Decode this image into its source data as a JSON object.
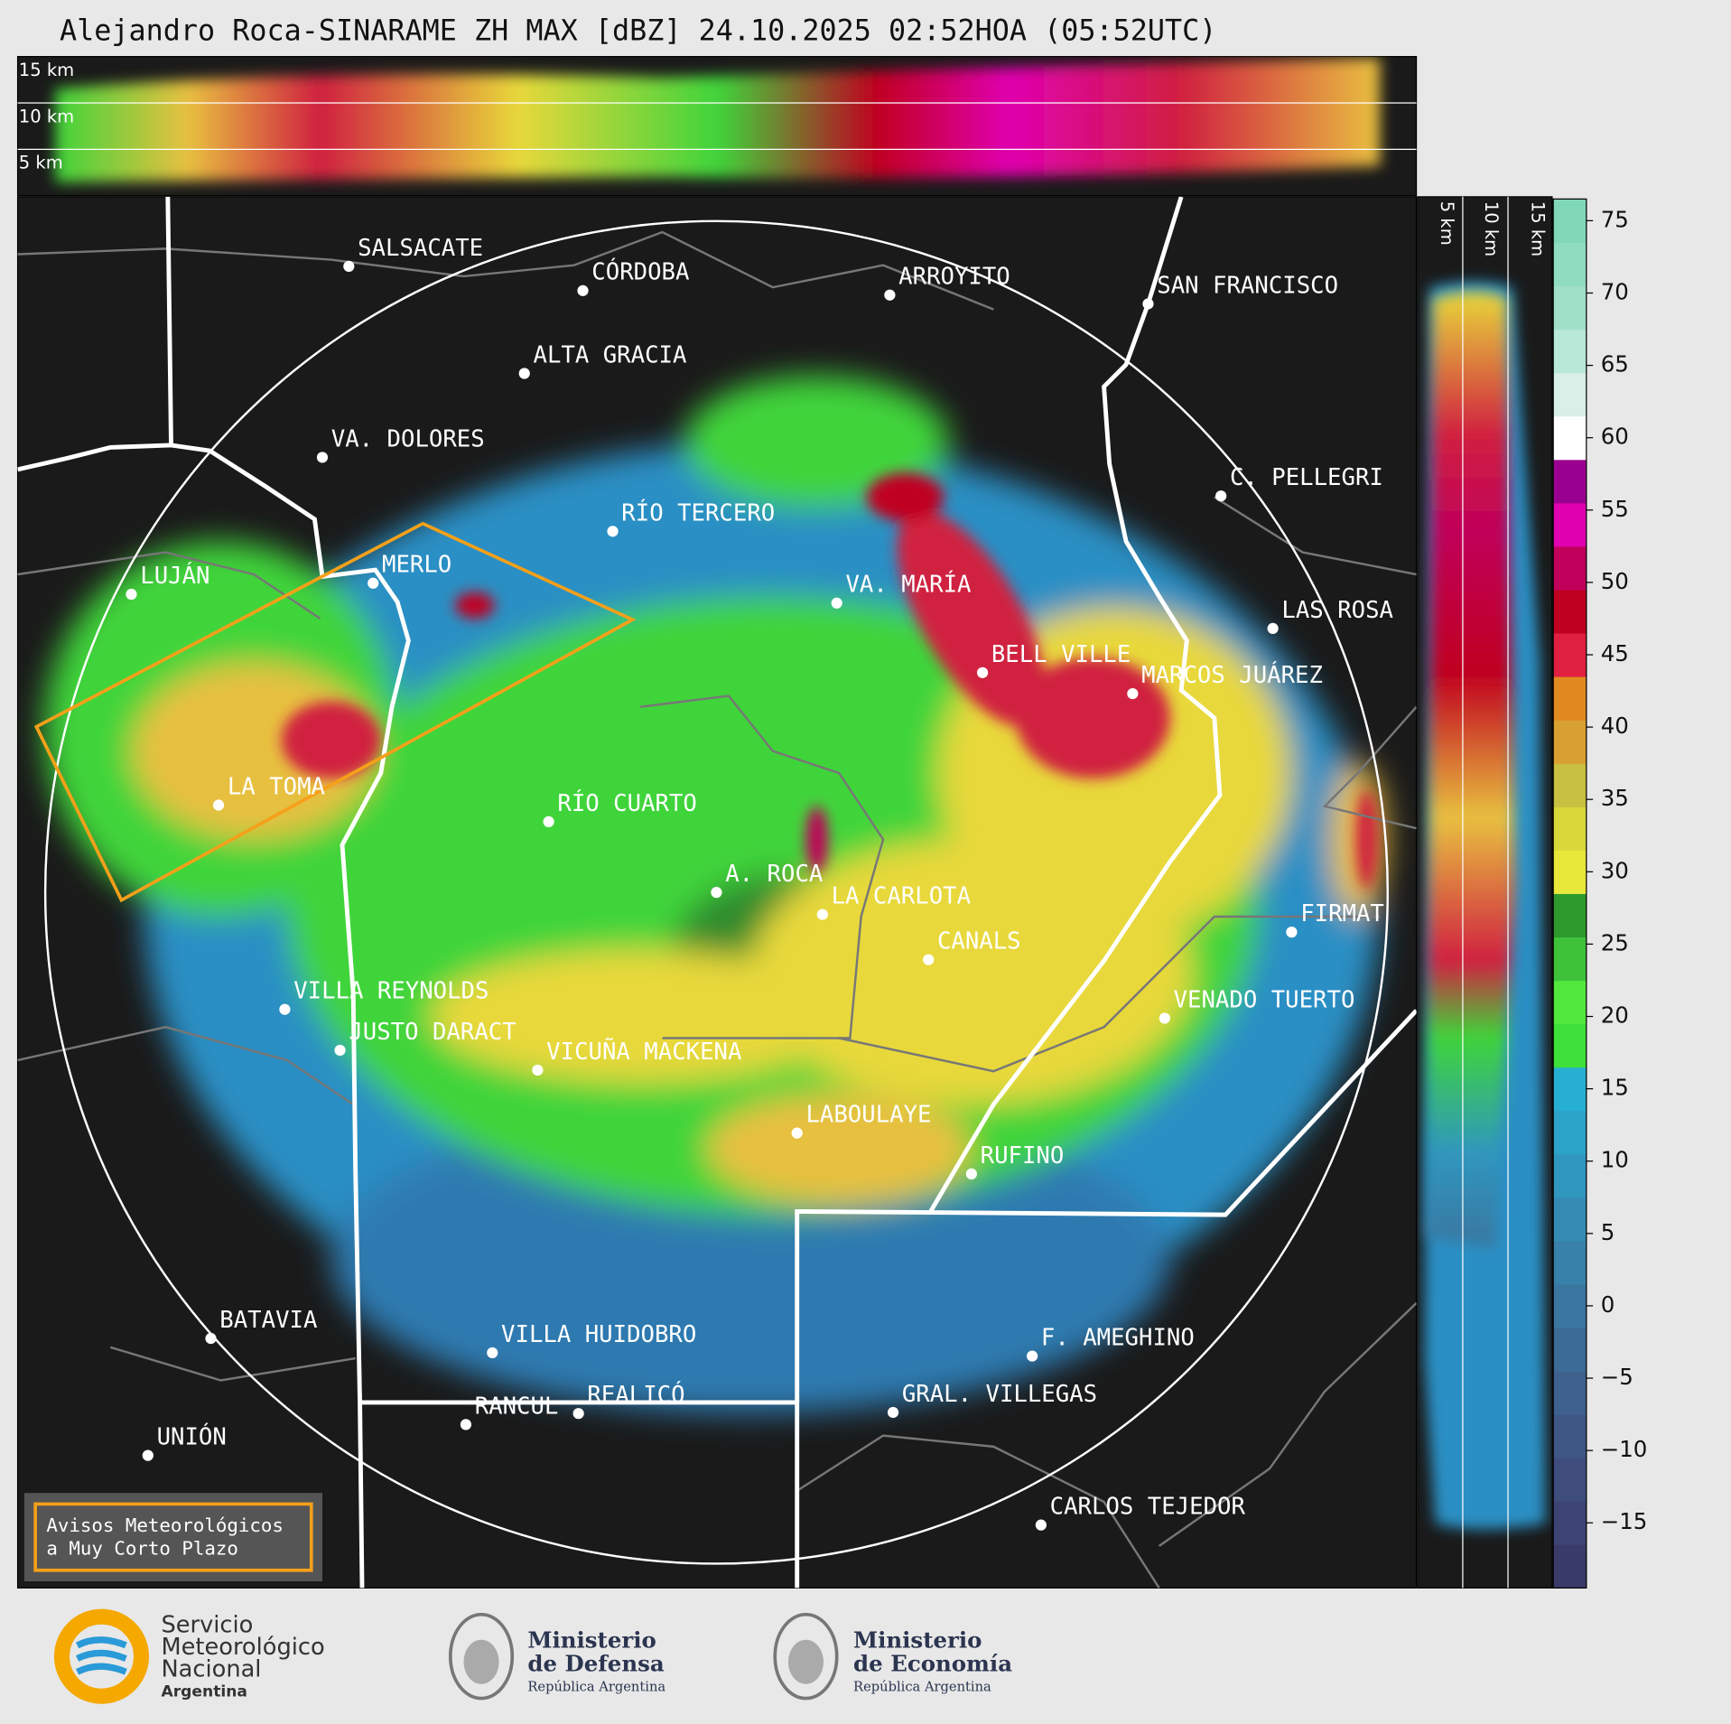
{
  "title": "Alejandro Roca-SINARAME ZH MAX [dBZ] 24.10.2025 02:52HOA (05:52UTC)",
  "top_profile": {
    "labels": [
      "15 km",
      "10 km",
      "5 km"
    ]
  },
  "right_profile": {
    "labels": [
      "5 km",
      "10 km",
      "15 km"
    ]
  },
  "colorbar": {
    "lim": [
      -19.5,
      76.5
    ],
    "ticks": [
      {
        "value": -15,
        "label": "−15"
      },
      {
        "value": -10,
        "label": "−10"
      },
      {
        "value": -5,
        "label": "−5"
      },
      0,
      5,
      10,
      15,
      20,
      25,
      30,
      35,
      40,
      45,
      50,
      55,
      60,
      65,
      70,
      75
    ],
    "colors": [
      "#3b3b6b",
      "#3d4474",
      "#3f4d7c",
      "#3f5785",
      "#3e618e",
      "#3c6b97",
      "#3a76a0",
      "#3781aa",
      "#348cb4",
      "#3097be",
      "#2ca3c8",
      "#27afd2",
      "#3fe03a",
      "#52e83e",
      "#3ec23a",
      "#2e9a2e",
      "#e8e83a",
      "#d8d83a",
      "#c8c040",
      "#d8a030",
      "#e08a20",
      "#e02040",
      "#c00020",
      "#c0005a",
      "#e000b0",
      "#9a0090",
      "#ffffff",
      "#d8f0e8",
      "#b8e8d8",
      "#a0e0c8",
      "#90dcc0",
      "#80d8b8"
    ]
  },
  "cities": [
    "SALSACATE",
    "CÓRDOBA",
    "ARROYITO",
    "SAN FRANCISCO",
    "ALTA GRACIA",
    "VA. DOLORES",
    "C. PELLEGRI",
    "RÍO TERCERO",
    "LUJÁN",
    "MERLO",
    "VA. MARÍA",
    "LAS ROSA",
    "BELL VILLE",
    "MARCOS JUÁREZ",
    "LA TOMA",
    "RÍO CUARTO",
    "A. ROCA",
    "LA CARLOTA",
    "FIRMAT",
    "CANALS",
    "VILLA REYNOLDS",
    "VENADO TUERTO",
    "JUSTO DARACT",
    "VICUÑA MACKENA",
    "LABOULAYE",
    "RUFINO",
    "BATAVIA",
    "VILLA HUIDOBRO",
    "F. AMEGHINO",
    "GRAL. VILLEGAS",
    "RANCUL",
    "REALICÓ",
    "UNIÓN",
    "CARLOS TEJEDOR"
  ],
  "warning_legend": {
    "lines": [
      "Avisos Meteorológicos",
      "a Muy Corto Plazo"
    ]
  },
  "logos": {
    "smn": [
      "Servicio",
      "Meteorológico",
      "Nacional",
      "Argentina"
    ],
    "defensa": [
      "Ministerio",
      "de Defensa",
      "República Argentina"
    ],
    "economia": [
      "Ministerio",
      "de Economía",
      "República Argentina"
    ]
  }
}
